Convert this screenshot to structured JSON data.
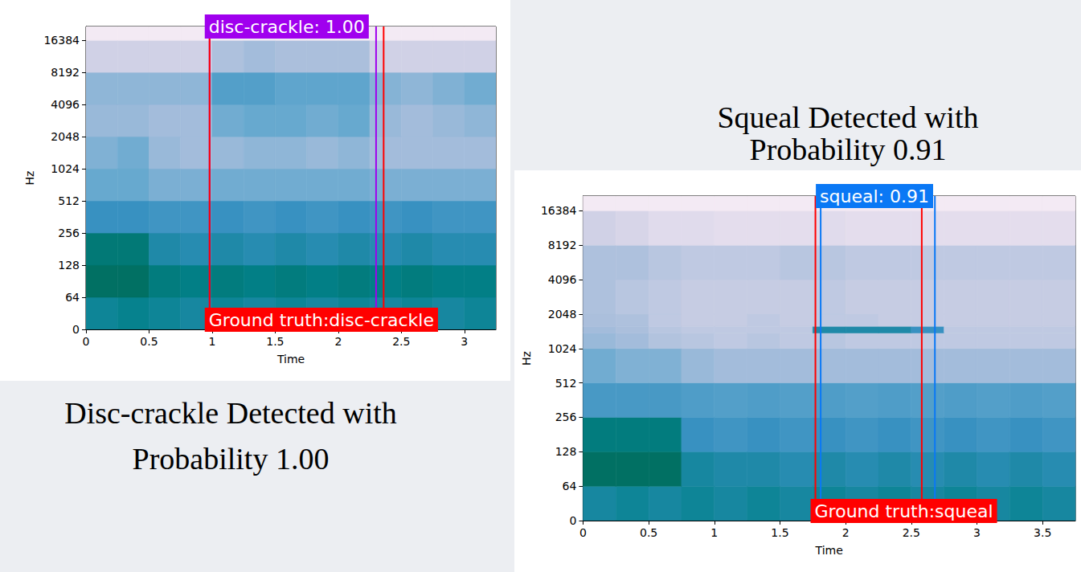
{
  "chart_data": [
    {
      "type": "spectrogram",
      "title": "Disc-crackle Detected with Probability 1.00",
      "x_label": "Time",
      "y_label": "Hz",
      "xlim": [
        0,
        3.25
      ],
      "xticks": [
        0,
        0.5,
        1,
        1.5,
        2,
        2.5,
        3
      ],
      "ylim": [
        0,
        22050
      ],
      "yticks": [
        0,
        64,
        128,
        256,
        512,
        1024,
        2048,
        4096,
        8192,
        16384
      ],
      "log": "y",
      "detection": {
        "text": "disc-crackle: 1.00",
        "start": 0.98,
        "end": 2.3,
        "color": "#a000ee"
      },
      "ground_truth": {
        "text": "Ground truth:disc-crackle",
        "start": 0.98,
        "end": 2.36,
        "color": "#ff0000"
      },
      "cells": {
        "time_edges": [
          0,
          0.25,
          0.5,
          0.75,
          1,
          1.25,
          1.5,
          1.75,
          2,
          2.25,
          2.5,
          2.75,
          3,
          3.25
        ],
        "freq_edges": [
          0,
          64,
          128,
          256,
          512,
          1024,
          2048,
          4096,
          8192,
          16384,
          22050
        ],
        "range": [
          0,
          1
        ],
        "values": [
          [
            0.72,
            0.74,
            0.72,
            0.7,
            0.72,
            0.7,
            0.72,
            0.7,
            0.72,
            0.7,
            0.72,
            0.7,
            0.72
          ],
          [
            0.85,
            0.85,
            0.78,
            0.76,
            0.78,
            0.76,
            0.78,
            0.76,
            0.78,
            0.76,
            0.78,
            0.76,
            0.76
          ],
          [
            0.8,
            0.8,
            0.68,
            0.66,
            0.68,
            0.66,
            0.68,
            0.66,
            0.68,
            0.66,
            0.68,
            0.66,
            0.66
          ],
          [
            0.62,
            0.62,
            0.6,
            0.6,
            0.62,
            0.6,
            0.62,
            0.6,
            0.62,
            0.6,
            0.62,
            0.6,
            0.6
          ],
          [
            0.5,
            0.5,
            0.46,
            0.46,
            0.48,
            0.48,
            0.48,
            0.48,
            0.48,
            0.46,
            0.46,
            0.46,
            0.46
          ],
          [
            0.45,
            0.48,
            0.4,
            0.38,
            0.4,
            0.42,
            0.42,
            0.4,
            0.42,
            0.38,
            0.38,
            0.38,
            0.38
          ],
          [
            0.4,
            0.4,
            0.38,
            0.38,
            0.48,
            0.5,
            0.5,
            0.48,
            0.5,
            0.4,
            0.38,
            0.4,
            0.42
          ],
          [
            0.42,
            0.42,
            0.42,
            0.42,
            0.55,
            0.55,
            0.52,
            0.52,
            0.52,
            0.44,
            0.42,
            0.45,
            0.48
          ],
          [
            0.25,
            0.25,
            0.25,
            0.25,
            0.35,
            0.38,
            0.36,
            0.36,
            0.36,
            0.25,
            0.25,
            0.25,
            0.25
          ],
          [
            0.08,
            0.08,
            0.08,
            0.08,
            0.08,
            0.08,
            0.08,
            0.08,
            0.08,
            0.08,
            0.08,
            0.08,
            0.08
          ]
        ]
      }
    },
    {
      "type": "spectrogram",
      "title": "Squeal Detected with Probability 0.91",
      "x_label": "Time",
      "y_label": "Hz",
      "xlim": [
        0,
        3.75
      ],
      "xticks": [
        0,
        0.5,
        1,
        1.5,
        2,
        2.5,
        3,
        3.5
      ],
      "ylim": [
        0,
        22050
      ],
      "yticks": [
        0,
        64,
        128,
        256,
        512,
        1024,
        2048,
        4096,
        8192,
        16384
      ],
      "log": "y",
      "detection": {
        "text": "squeal: 0.91",
        "start": 1.81,
        "end": 2.68,
        "color": "#0a78f5"
      },
      "ground_truth": {
        "text": "Ground truth:squeal",
        "start": 1.77,
        "end": 2.58,
        "color": "#ff0000"
      },
      "cells": {
        "time_edges": [
          0,
          0.25,
          0.5,
          0.75,
          1,
          1.25,
          1.5,
          1.75,
          2,
          2.25,
          2.5,
          2.75,
          3,
          3.25,
          3.5,
          3.75
        ],
        "freq_edges": [
          0,
          64,
          128,
          256,
          512,
          1024,
          1400,
          1600,
          2048,
          4096,
          8192,
          16384,
          22050
        ],
        "range": [
          0,
          1
        ],
        "values": [
          [
            0.7,
            0.72,
            0.7,
            0.72,
            0.7,
            0.72,
            0.7,
            0.72,
            0.7,
            0.72,
            0.7,
            0.72,
            0.7,
            0.72,
            0.7
          ],
          [
            0.85,
            0.85,
            0.85,
            0.7,
            0.68,
            0.68,
            0.66,
            0.68,
            0.66,
            0.68,
            0.66,
            0.68,
            0.66,
            0.68,
            0.66
          ],
          [
            0.78,
            0.78,
            0.78,
            0.62,
            0.6,
            0.62,
            0.6,
            0.62,
            0.6,
            0.62,
            0.6,
            0.62,
            0.6,
            0.62,
            0.6
          ],
          [
            0.58,
            0.58,
            0.58,
            0.56,
            0.55,
            0.56,
            0.55,
            0.56,
            0.55,
            0.56,
            0.55,
            0.56,
            0.55,
            0.56,
            0.55
          ],
          [
            0.48,
            0.45,
            0.45,
            0.4,
            0.38,
            0.38,
            0.38,
            0.38,
            0.38,
            0.38,
            0.38,
            0.38,
            0.38,
            0.38,
            0.38
          ],
          [
            0.4,
            0.38,
            0.34,
            0.32,
            0.3,
            0.32,
            0.3,
            0.32,
            0.3,
            0.3,
            0.3,
            0.3,
            0.3,
            0.3,
            0.3
          ],
          [
            0.38,
            0.36,
            0.32,
            0.3,
            0.3,
            0.3,
            0.3,
            0.68,
            0.68,
            0.68,
            0.62,
            0.3,
            0.3,
            0.3,
            0.3
          ],
          [
            0.36,
            0.35,
            0.3,
            0.28,
            0.28,
            0.3,
            0.28,
            0.3,
            0.3,
            0.28,
            0.28,
            0.28,
            0.28,
            0.28,
            0.28
          ],
          [
            0.35,
            0.32,
            0.3,
            0.28,
            0.28,
            0.28,
            0.28,
            0.3,
            0.28,
            0.28,
            0.28,
            0.28,
            0.28,
            0.28,
            0.28
          ],
          [
            0.35,
            0.35,
            0.32,
            0.3,
            0.3,
            0.3,
            0.32,
            0.32,
            0.3,
            0.3,
            0.3,
            0.3,
            0.3,
            0.3,
            0.3
          ],
          [
            0.25,
            0.22,
            0.18,
            0.18,
            0.16,
            0.16,
            0.16,
            0.18,
            0.16,
            0.16,
            0.16,
            0.16,
            0.16,
            0.16,
            0.16
          ],
          [
            0.08,
            0.08,
            0.08,
            0.08,
            0.08,
            0.08,
            0.08,
            0.08,
            0.08,
            0.08,
            0.08,
            0.08,
            0.08,
            0.08,
            0.08
          ]
        ]
      }
    }
  ]
}
